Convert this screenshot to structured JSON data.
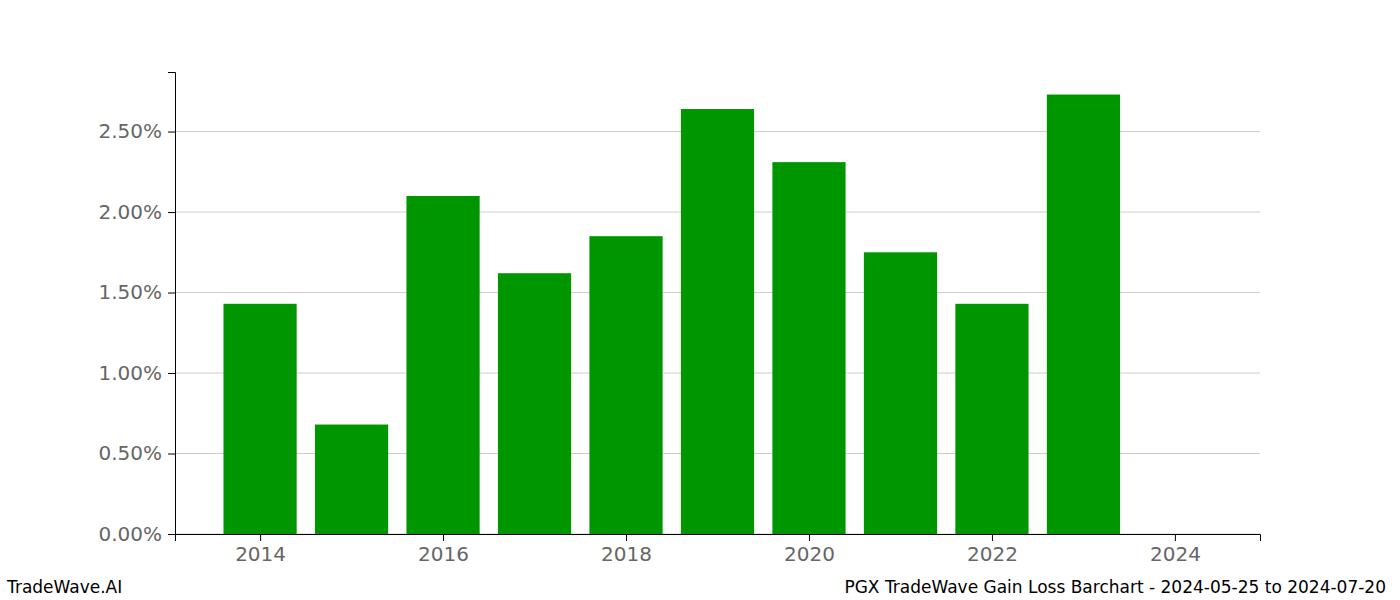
{
  "chart_data": {
    "type": "bar",
    "title": "PGX TradeWave Gain Loss Barchart - 2024-05-25 to 2024-07-20",
    "annotations": [
      "TradeWave.AI"
    ],
    "x": [
      2014,
      2015,
      2016,
      2017,
      2018,
      2019,
      2020,
      2021,
      2022,
      2023
    ],
    "values": [
      1.43,
      0.68,
      2.1,
      1.62,
      1.85,
      2.64,
      2.31,
      1.75,
      1.43,
      2.73
    ],
    "color": "#009600",
    "xlim": [
      2013.07,
      2024.93
    ],
    "xticks": [
      2014,
      2016,
      2018,
      2020,
      2022,
      2024
    ],
    "ylim": [
      0,
      2.87
    ],
    "yticks": [
      {
        "value": 0,
        "label": "0.00%"
      },
      {
        "value": 0.5,
        "label": "0.50%"
      },
      {
        "value": 1,
        "label": "1.00%"
      },
      {
        "value": 1.5,
        "label": "1.50%"
      },
      {
        "value": 2,
        "label": "2.00%"
      },
      {
        "value": 2.5,
        "label": "2.50%"
      }
    ],
    "grid": true
  }
}
